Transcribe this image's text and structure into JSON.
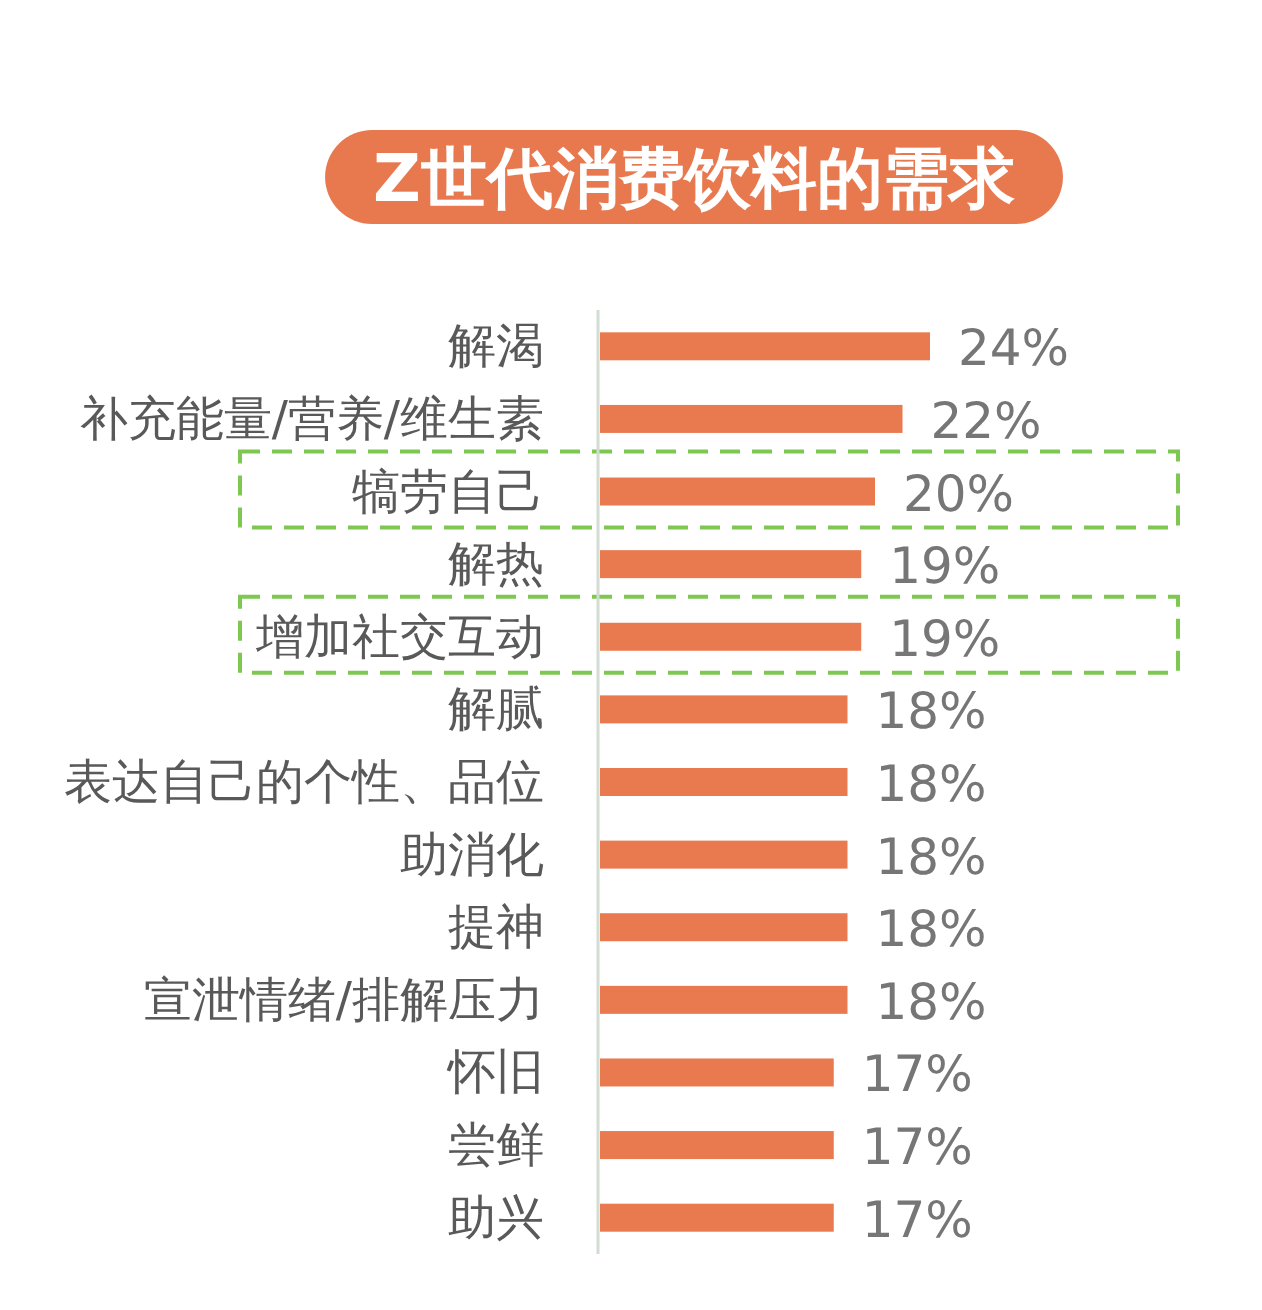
{
  "chart_data": {
    "type": "bar",
    "orientation": "horizontal",
    "title": "Z世代消费饮料的需求",
    "categories": [
      "解渴",
      "补充能量/营养/维生素",
      "犒劳自己",
      "解热",
      "增加社交互动",
      "解腻",
      "表达自己的个性、品位",
      "助消化",
      "提神",
      "宣泄情绪/排解压力",
      "怀旧",
      "尝鲜",
      "助兴"
    ],
    "values": [
      24,
      22,
      20,
      19,
      19,
      18,
      18,
      18,
      18,
      18,
      17,
      17,
      17
    ],
    "value_labels": [
      "24%",
      "22%",
      "20%",
      "19%",
      "19%",
      "18%",
      "18%",
      "18%",
      "18%",
      "18%",
      "17%",
      "17%",
      "17%"
    ],
    "color": "#e97a4f",
    "tick_labels": "y"
  }
}
